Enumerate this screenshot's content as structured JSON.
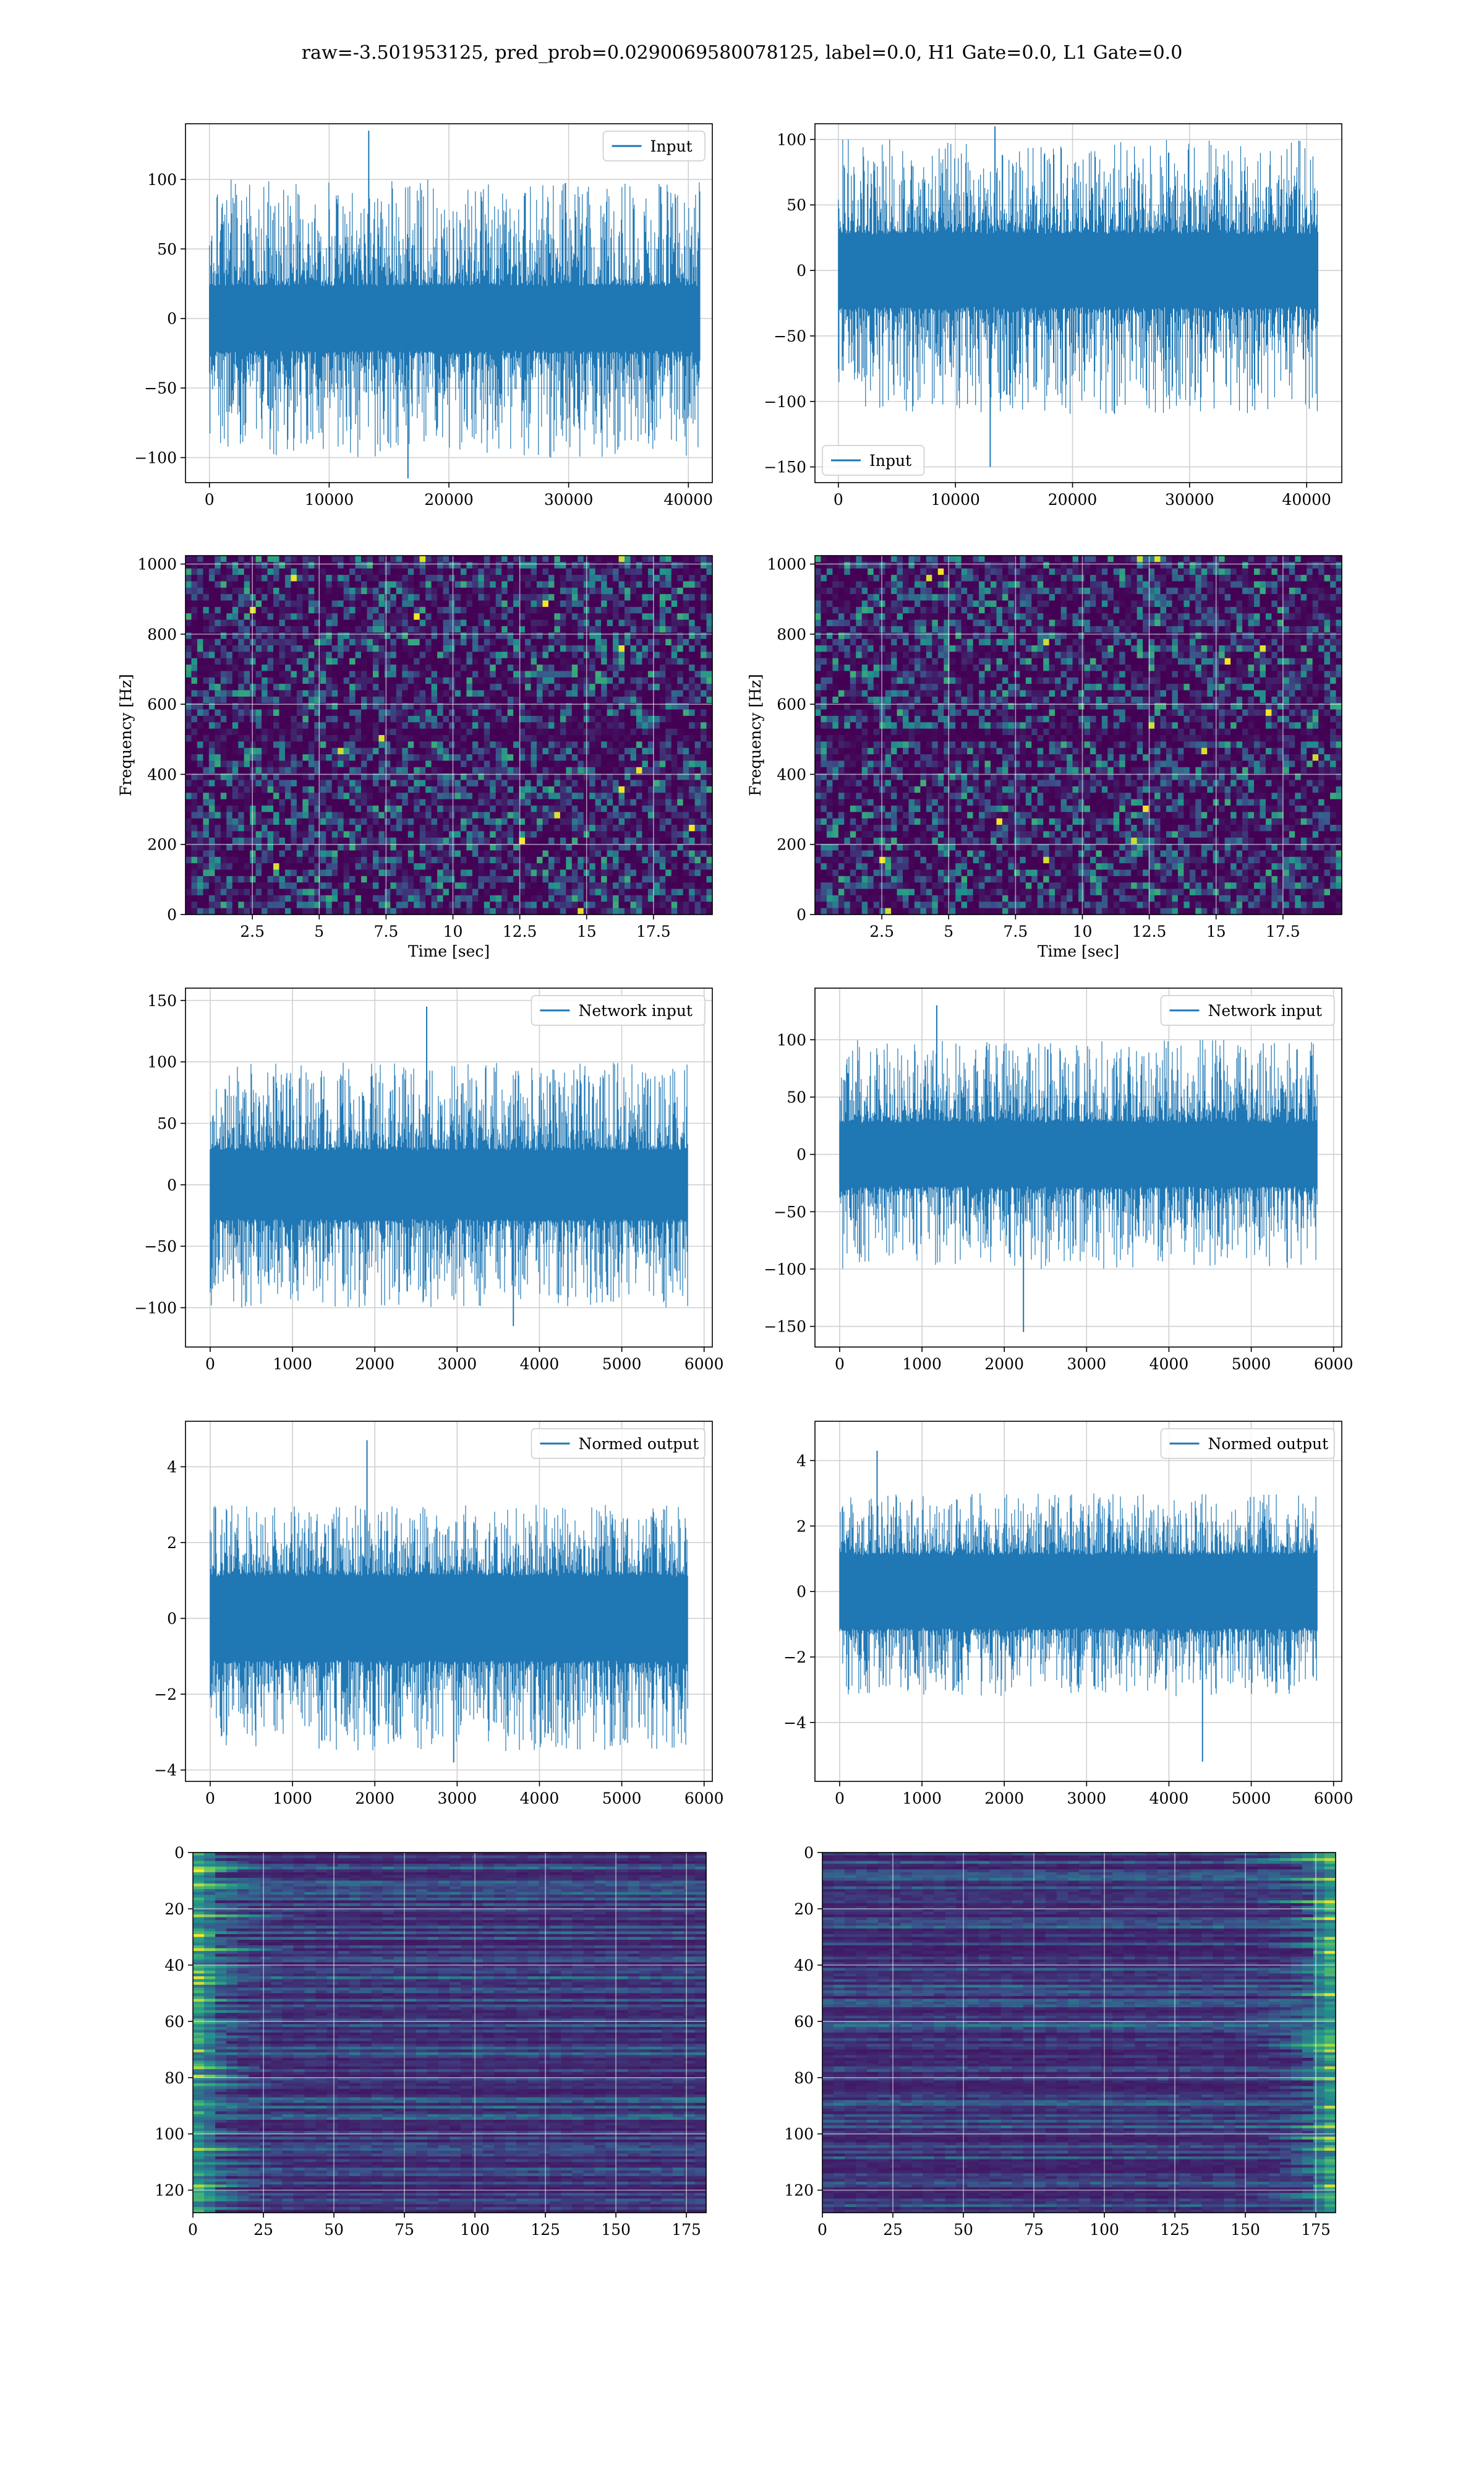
{
  "figure": {
    "title": "raw=-3.501953125, pred_prob=0.0290069580078125, label=0.0, H1 Gate=0.0, L1 Gate=0.0"
  },
  "colors": {
    "line": "#1f77b4",
    "grid": "#d0d0d0",
    "viridis_low": "#440154",
    "viridis_mid": "#21918c",
    "viridis_high": "#fde725"
  },
  "chart_data": [
    {
      "id": "h1-input",
      "type": "line",
      "legend": "Input",
      "legend_loc": "upper-right",
      "xlim": [
        -2000,
        42000
      ],
      "ylim": [
        -118,
        140
      ],
      "xticks": [
        0,
        10000,
        20000,
        30000,
        40000
      ],
      "yticks": [
        -100,
        -50,
        0,
        50,
        100
      ],
      "series": [
        {
          "name": "Input",
          "n": 40960,
          "band_lo": -25,
          "band_hi": 25,
          "envelope_min": -100,
          "envelope_max": 100,
          "extremes": {
            "max": 135,
            "min": -115
          }
        }
      ],
      "grid": true
    },
    {
      "id": "l1-input",
      "type": "line",
      "legend": "Input",
      "legend_loc": "lower-left",
      "xlim": [
        -2000,
        43000
      ],
      "ylim": [
        -162,
        112
      ],
      "xticks": [
        0,
        10000,
        20000,
        30000,
        40000
      ],
      "yticks": [
        -150,
        -100,
        -50,
        0,
        50,
        100
      ],
      "series": [
        {
          "name": "Input",
          "n": 40960,
          "band_lo": -30,
          "band_hi": 30,
          "envelope_min": -110,
          "envelope_max": 100,
          "extremes": {
            "max": 110,
            "min": -150
          }
        }
      ],
      "grid": true
    },
    {
      "id": "h1-spectrogram",
      "type": "heatmap",
      "colormap": "viridis",
      "xlabel": "Time [sec]",
      "ylabel": "Frequency [Hz]",
      "xlim": [
        0,
        19.7
      ],
      "ylim": [
        0,
        1024
      ],
      "xticks": [
        2.5,
        5.0,
        7.5,
        10.0,
        12.5,
        15.0,
        17.5
      ],
      "yticks": [
        0,
        200,
        400,
        600,
        800,
        1000
      ],
      "grid": true
    },
    {
      "id": "l1-spectrogram",
      "type": "heatmap",
      "colormap": "viridis",
      "xlabel": "Time [sec]",
      "ylabel": "Frequency [Hz]",
      "xlim": [
        0,
        19.7
      ],
      "ylim": [
        0,
        1024
      ],
      "xticks": [
        2.5,
        5.0,
        7.5,
        10.0,
        12.5,
        15.0,
        17.5
      ],
      "yticks": [
        0,
        200,
        400,
        600,
        800,
        1000
      ],
      "grid": true
    },
    {
      "id": "h1-network-input",
      "type": "line",
      "legend": "Network input",
      "legend_loc": "upper-right",
      "xlim": [
        -300,
        6100
      ],
      "ylim": [
        -132,
        160
      ],
      "xticks": [
        0,
        1000,
        2000,
        3000,
        4000,
        5000,
        6000
      ],
      "yticks": [
        -100,
        -50,
        0,
        50,
        100,
        150
      ],
      "series": [
        {
          "name": "Network input",
          "n": 5800,
          "band_lo": -30,
          "band_hi": 30,
          "envelope_min": -100,
          "envelope_max": 100,
          "extremes": {
            "max": 145,
            "min": -115
          }
        }
      ],
      "grid": true
    },
    {
      "id": "l1-network-input",
      "type": "line",
      "legend": "Network input",
      "legend_loc": "upper-right",
      "xlim": [
        -300,
        6100
      ],
      "ylim": [
        -168,
        145
      ],
      "xticks": [
        0,
        1000,
        2000,
        3000,
        4000,
        5000,
        6000
      ],
      "yticks": [
        -150,
        -100,
        -50,
        0,
        50,
        100
      ],
      "series": [
        {
          "name": "Network input",
          "n": 5800,
          "band_lo": -30,
          "band_hi": 30,
          "envelope_min": -100,
          "envelope_max": 100,
          "extremes": {
            "max": 130,
            "min": -155
          }
        }
      ],
      "grid": true
    },
    {
      "id": "h1-normed-output",
      "type": "line",
      "legend": "Normed output",
      "legend_loc": "upper-right",
      "xlim": [
        -300,
        6100
      ],
      "ylim": [
        -4.3,
        5.2
      ],
      "xticks": [
        0,
        1000,
        2000,
        3000,
        4000,
        5000,
        6000
      ],
      "yticks": [
        -4,
        -2,
        0,
        2,
        4
      ],
      "series": [
        {
          "name": "Normed output",
          "n": 5800,
          "band_lo": -1.2,
          "band_hi": 1.2,
          "envelope_min": -3.5,
          "envelope_max": 3.0,
          "extremes": {
            "max": 4.7,
            "min": -3.8
          }
        }
      ],
      "grid": true
    },
    {
      "id": "l1-normed-output",
      "type": "line",
      "legend": "Normed output",
      "legend_loc": "upper-right",
      "xlim": [
        -300,
        6100
      ],
      "ylim": [
        -5.8,
        5.2
      ],
      "xticks": [
        0,
        1000,
        2000,
        3000,
        4000,
        5000,
        6000
      ],
      "yticks": [
        -4,
        -2,
        0,
        2,
        4
      ],
      "series": [
        {
          "name": "Normed output",
          "n": 5800,
          "band_lo": -1.2,
          "band_hi": 1.2,
          "envelope_min": -3.2,
          "envelope_max": 3.0,
          "extremes": {
            "max": 4.3,
            "min": -5.2
          }
        }
      ],
      "grid": true
    },
    {
      "id": "h1-feature-map",
      "type": "heatmap",
      "colormap": "viridis",
      "xlim": [
        0,
        182
      ],
      "ylim": [
        128,
        0
      ],
      "xticks": [
        0,
        25,
        50,
        75,
        100,
        125,
        150,
        175
      ],
      "yticks": [
        0,
        20,
        40,
        60,
        80,
        100,
        120
      ],
      "hot_edge": "left",
      "grid": true
    },
    {
      "id": "l1-feature-map",
      "type": "heatmap",
      "colormap": "viridis",
      "xlim": [
        0,
        182
      ],
      "ylim": [
        128,
        0
      ],
      "xticks": [
        0,
        25,
        50,
        75,
        100,
        125,
        150,
        175
      ],
      "yticks": [
        0,
        20,
        40,
        60,
        80,
        100,
        120
      ],
      "hot_edge": "right",
      "grid": true
    }
  ]
}
